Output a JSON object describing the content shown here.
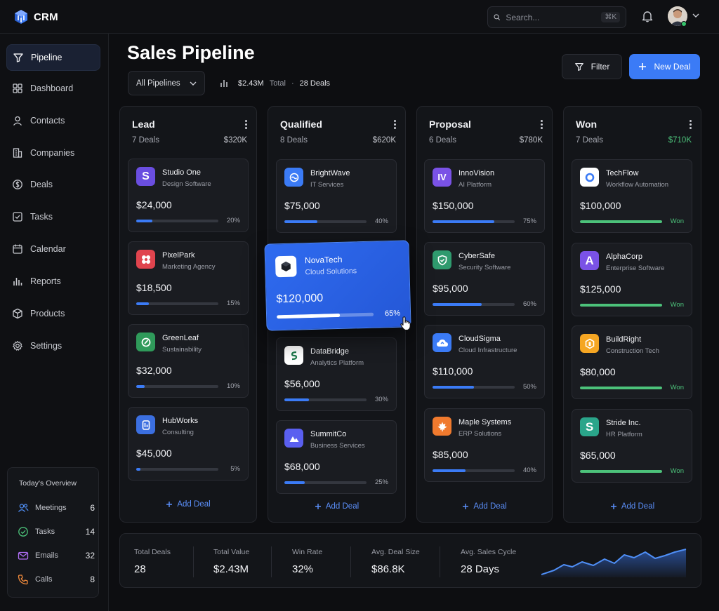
{
  "app": {
    "name": "CRM"
  },
  "search": {
    "placeholder": "Search...",
    "shortcut": "⌘K"
  },
  "sidebar": {
    "items": [
      {
        "label": "Pipeline",
        "icon": "funnel-icon",
        "active": true
      },
      {
        "label": "Dashboard",
        "icon": "grid-icon"
      },
      {
        "label": "Contacts",
        "icon": "user-icon"
      },
      {
        "label": "Companies",
        "icon": "building-icon"
      },
      {
        "label": "Deals",
        "icon": "dollar-icon"
      },
      {
        "label": "Tasks",
        "icon": "checkbox-icon"
      },
      {
        "label": "Calendar",
        "icon": "calendar-icon"
      },
      {
        "label": "Reports",
        "icon": "bar-chart-icon"
      },
      {
        "label": "Products",
        "icon": "box-icon"
      },
      {
        "label": "Settings",
        "icon": "gear-icon"
      }
    ],
    "overview": {
      "title": "Today's Overview",
      "rows": [
        {
          "label": "Meetings",
          "value": "6",
          "color": "#4f8ff7"
        },
        {
          "label": "Tasks",
          "value": "14",
          "color": "#4cc27a"
        },
        {
          "label": "Emails",
          "value": "32",
          "color": "#b06ef5"
        },
        {
          "label": "Calls",
          "value": "8",
          "color": "#f08a3c"
        }
      ]
    }
  },
  "header": {
    "title": "Sales Pipeline",
    "pipeline_select": "All Pipelines",
    "total_value": "$2.43M",
    "total_label": "Total",
    "deals_count": "28 Deals",
    "filter_label": "Filter",
    "new_deal_label": "New Deal"
  },
  "columns": [
    {
      "name": "Lead",
      "count": "7 Deals",
      "total": "$320K",
      "add_label": "Add Deal",
      "cards": [
        {
          "name": "Studio One",
          "sub": "Design Software",
          "value": "$24,000",
          "pct": "20%",
          "progress": 0.2,
          "icon_letter": "S",
          "color": "#6a4ee0"
        },
        {
          "name": "PixelPark",
          "sub": "Marketing Agency",
          "value": "$18,500",
          "pct": "15%",
          "progress": 0.15,
          "icon_letter": "",
          "color": "#e0444e"
        },
        {
          "name": "GreenLeaf",
          "sub": "Sustainability",
          "value": "$32,000",
          "pct": "10%",
          "progress": 0.1,
          "icon_letter": "",
          "color": "#2f9a5a"
        },
        {
          "name": "HubWorks",
          "sub": "Consulting",
          "value": "$45,000",
          "pct": "5%",
          "progress": 0.05,
          "icon_letter": "",
          "color": "#3b6fe0"
        }
      ]
    },
    {
      "name": "Qualified",
      "count": "8 Deals",
      "total": "$620K",
      "add_label": "Add Deal",
      "cards": [
        {
          "name": "BrightWave",
          "sub": "IT Services",
          "value": "$75,000",
          "pct": "40%",
          "progress": 0.4,
          "icon_letter": "",
          "color": "#3b7bf6"
        },
        {
          "name": "DataBridge",
          "sub": "Analytics Platform",
          "value": "$56,000",
          "pct": "30%",
          "progress": 0.3,
          "icon_letter": "",
          "color": "#ffffff"
        },
        {
          "name": "SummitCo",
          "sub": "Business Services",
          "value": "$68,000",
          "pct": "25%",
          "progress": 0.25,
          "icon_letter": "",
          "color": "#5a5ff0"
        }
      ]
    },
    {
      "name": "Proposal",
      "count": "6 Deals",
      "total": "$780K",
      "add_label": "Add Deal",
      "cards": [
        {
          "name": "InnoVision",
          "sub": "AI Platform",
          "value": "$150,000",
          "pct": "75%",
          "progress": 0.75,
          "icon_letter": "IV",
          "color": "#7a52e6"
        },
        {
          "name": "CyberSafe",
          "sub": "Security Software",
          "value": "$95,000",
          "pct": "60%",
          "progress": 0.6,
          "icon_letter": "",
          "color": "#2f9a6e"
        },
        {
          "name": "CloudSigma",
          "sub": "Cloud Infrastructure",
          "value": "$110,000",
          "pct": "50%",
          "progress": 0.5,
          "icon_letter": "",
          "color": "#3b7bf6"
        },
        {
          "name": "Maple Systems",
          "sub": "ERP Solutions",
          "value": "$85,000",
          "pct": "40%",
          "progress": 0.4,
          "icon_letter": "",
          "color": "#f07a2e"
        }
      ]
    },
    {
      "name": "Won",
      "count": "7 Deals",
      "total": "$710K",
      "add_label": "Add Deal",
      "cards": [
        {
          "name": "TechFlow",
          "sub": "Workflow Automation",
          "value": "$100,000",
          "pct": "Won",
          "progress": 1,
          "icon_letter": "",
          "color": "#ffffff"
        },
        {
          "name": "AlphaCorp",
          "sub": "Enterprise Software",
          "value": "$125,000",
          "pct": "Won",
          "progress": 1,
          "icon_letter": "A",
          "color": "#7a52e6"
        },
        {
          "name": "BuildRight",
          "sub": "Construction Tech",
          "value": "$80,000",
          "pct": "Won",
          "progress": 1,
          "icon_letter": "",
          "color": "#f5a623"
        },
        {
          "name": "Stride Inc.",
          "sub": "HR Platform",
          "value": "$65,000",
          "pct": "Won",
          "progress": 1,
          "icon_letter": "S",
          "color": "#2aa58a"
        }
      ]
    }
  ],
  "drag_card": {
    "name": "NovaTech",
    "sub": "Cloud Solutions",
    "value": "$120,000",
    "pct": "65%",
    "progress": 0.65
  },
  "stats": [
    {
      "label": "Total Deals",
      "value": "28"
    },
    {
      "label": "Total Value",
      "value": "$2.43M"
    },
    {
      "label": "Win Rate",
      "value": "32%"
    },
    {
      "label": "Avg. Deal Size",
      "value": "$86.8K"
    },
    {
      "label": "Avg. Sales Cycle",
      "value": "28 Days"
    }
  ],
  "colors": {
    "accent": "#3b7bf6",
    "won": "#4cc27a"
  }
}
